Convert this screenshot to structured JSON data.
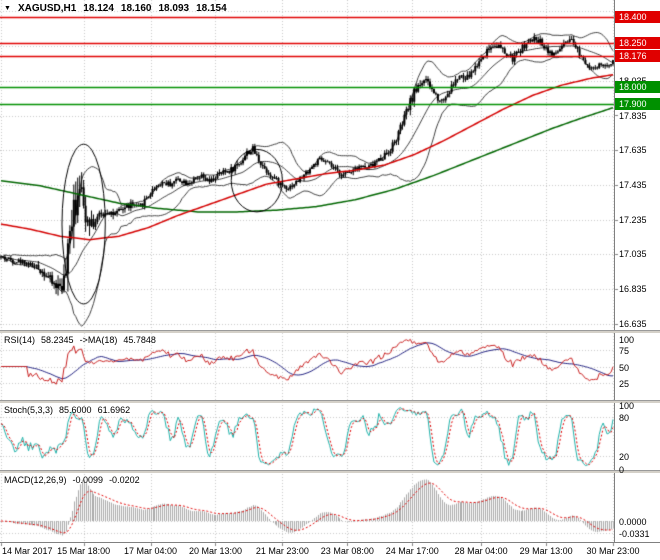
{
  "window": {
    "symbol": "XAGUSD,H1",
    "open": "18.124",
    "high": "18.160",
    "low": "18.093",
    "close": "18.154"
  },
  "colors": {
    "resistance": "#e00000",
    "support": "#009000",
    "candle": "#000000",
    "bollinger": "#404040",
    "ma_red": "#d40000",
    "ma_green": "#006600",
    "rsi_line": "#c82020",
    "rsi_ma": "#202080",
    "stoch_k": "#20b2aa",
    "stoch_d": "#e00000",
    "macd_hist": "#a8a8a8",
    "macd_signal": "#e00000",
    "grid": "#c8c8c8",
    "axis_border": "#808080"
  },
  "panels": {
    "rsi": {
      "title": "RSI(14)",
      "value": "58.2345",
      "ma_title": "->MA(18)",
      "ma_value": "45.7848",
      "axis": [
        {
          "v": 100,
          "t": "100"
        },
        {
          "v": 75,
          "t": "75"
        },
        {
          "v": 50,
          "t": "50"
        },
        {
          "v": 25,
          "t": "25"
        }
      ],
      "grid": [
        25,
        50,
        75
      ]
    },
    "stoch": {
      "title": "Stoch(5,3,3)",
      "value": "85.6000",
      "ma_value": "61.6962",
      "axis": [
        {
          "v": 100,
          "t": "100"
        },
        {
          "v": 80,
          "t": "80"
        },
        {
          "v": 20,
          "t": "20"
        },
        {
          "v": 0,
          "t": "0"
        }
      ],
      "grid": [
        20,
        80
      ]
    },
    "macd": {
      "title": "MACD(12,26,9)",
      "value": "-0.0099",
      "ma_value": "-0.0202",
      "axis": [
        {
          "v": 0,
          "t": "0.0000"
        },
        {
          "v": -0.0331,
          "t": "-0.0331"
        }
      ]
    }
  },
  "chart_data": {
    "type": "candlestick",
    "title": "XAGUSD,H1",
    "bars_total": 312,
    "seed": 42,
    "ylim": [
      16.6,
      18.5
    ],
    "ohlc_last": {
      "open": 18.124,
      "high": 18.16,
      "low": 18.093,
      "close": 18.154
    },
    "y_ticks": [
      {
        "price": 18.035,
        "t": "18.035"
      },
      {
        "price": 17.835,
        "t": "17.835"
      },
      {
        "price": 17.635,
        "t": "17.635"
      },
      {
        "price": 17.435,
        "t": "17.435"
      },
      {
        "price": 17.235,
        "t": "17.235"
      },
      {
        "price": 17.035,
        "t": "17.035"
      },
      {
        "price": 16.835,
        "t": "16.835"
      },
      {
        "price": 16.635,
        "t": "16.635"
      }
    ],
    "levels": [
      {
        "price": 18.4,
        "t": "18.400",
        "kind": "resistance"
      },
      {
        "price": 18.25,
        "t": "18.250",
        "kind": "resistance"
      },
      {
        "price": 18.176,
        "t": "18.176",
        "kind": "resistance"
      },
      {
        "price": 18.0,
        "t": "18.000",
        "kind": "support"
      },
      {
        "price": 17.9,
        "t": "17.900",
        "kind": "support"
      }
    ],
    "x_labels": [
      {
        "bar": 0,
        "t": "14 Mar 2017"
      },
      {
        "bar": 42,
        "t": "15 Mar 18:00"
      },
      {
        "bar": 76,
        "t": "17 Mar 04:00"
      },
      {
        "bar": 109,
        "t": "20 Mar 13:00"
      },
      {
        "bar": 143,
        "t": "21 Mar 23:00"
      },
      {
        "bar": 176,
        "t": "23 Mar 08:00"
      },
      {
        "bar": 209,
        "t": "24 Mar 17:00"
      },
      {
        "bar": 244,
        "t": "28 Mar 04:00"
      },
      {
        "bar": 277,
        "t": "29 Mar 13:00"
      },
      {
        "bar": 311,
        "t": "30 Mar 23:00"
      }
    ],
    "close_anchors": [
      [
        0,
        17.02
      ],
      [
        6,
        17.0
      ],
      [
        12,
        16.99
      ],
      [
        18,
        16.96
      ],
      [
        23,
        16.92
      ],
      [
        26,
        16.87
      ],
      [
        29,
        16.85
      ],
      [
        32,
        16.88
      ],
      [
        34,
        16.98
      ],
      [
        35,
        17.12
      ],
      [
        36,
        17.28
      ],
      [
        37,
        17.42
      ],
      [
        38,
        17.3
      ],
      [
        39,
        17.45
      ],
      [
        40,
        17.5
      ],
      [
        41,
        17.36
      ],
      [
        42,
        17.3
      ],
      [
        44,
        17.26
      ],
      [
        47,
        17.22
      ],
      [
        50,
        17.25
      ],
      [
        54,
        17.29
      ],
      [
        58,
        17.26
      ],
      [
        62,
        17.3
      ],
      [
        66,
        17.32
      ],
      [
        70,
        17.3
      ],
      [
        74,
        17.36
      ],
      [
        78,
        17.42
      ],
      [
        82,
        17.45
      ],
      [
        86,
        17.44
      ],
      [
        90,
        17.47
      ],
      [
        94,
        17.45
      ],
      [
        98,
        17.46
      ],
      [
        102,
        17.48
      ],
      [
        106,
        17.45
      ],
      [
        110,
        17.49
      ],
      [
        114,
        17.51
      ],
      [
        118,
        17.53
      ],
      [
        122,
        17.57
      ],
      [
        125,
        17.62
      ],
      [
        128,
        17.64
      ],
      [
        131,
        17.58
      ],
      [
        134,
        17.53
      ],
      [
        138,
        17.48
      ],
      [
        142,
        17.44
      ],
      [
        146,
        17.42
      ],
      [
        150,
        17.45
      ],
      [
        154,
        17.49
      ],
      [
        158,
        17.54
      ],
      [
        162,
        17.58
      ],
      [
        166,
        17.56
      ],
      [
        170,
        17.52
      ],
      [
        174,
        17.49
      ],
      [
        178,
        17.52
      ],
      [
        182,
        17.55
      ],
      [
        186,
        17.53
      ],
      [
        190,
        17.56
      ],
      [
        194,
        17.6
      ],
      [
        197,
        17.63
      ],
      [
        200,
        17.68
      ],
      [
        203,
        17.76
      ],
      [
        206,
        17.85
      ],
      [
        209,
        17.94
      ],
      [
        212,
        18.01
      ],
      [
        215,
        18.04
      ],
      [
        218,
        18.0
      ],
      [
        221,
        17.95
      ],
      [
        224,
        17.92
      ],
      [
        227,
        17.96
      ],
      [
        230,
        18.02
      ],
      [
        233,
        18.06
      ],
      [
        236,
        18.04
      ],
      [
        239,
        18.08
      ],
      [
        242,
        18.13
      ],
      [
        245,
        18.18
      ],
      [
        248,
        18.22
      ],
      [
        251,
        18.25
      ],
      [
        254,
        18.22
      ],
      [
        257,
        18.18
      ],
      [
        260,
        18.16
      ],
      [
        263,
        18.2
      ],
      [
        266,
        18.24
      ],
      [
        269,
        18.26
      ],
      [
        272,
        18.28
      ],
      [
        275,
        18.25
      ],
      [
        278,
        18.21
      ],
      [
        281,
        18.18
      ],
      [
        284,
        18.22
      ],
      [
        287,
        18.25
      ],
      [
        290,
        18.26
      ],
      [
        293,
        18.21
      ],
      [
        296,
        18.16
      ],
      [
        299,
        18.12
      ],
      [
        302,
        18.1
      ],
      [
        305,
        18.13
      ],
      [
        308,
        18.11
      ],
      [
        311,
        18.15
      ]
    ],
    "range_anchors": [
      [
        0,
        0.05
      ],
      [
        15,
        0.05
      ],
      [
        23,
        0.08
      ],
      [
        28,
        0.12
      ],
      [
        32,
        0.2
      ],
      [
        34,
        0.42
      ],
      [
        36,
        0.42
      ],
      [
        38,
        0.38
      ],
      [
        40,
        0.3
      ],
      [
        43,
        0.22
      ],
      [
        46,
        0.14
      ],
      [
        52,
        0.09
      ],
      [
        60,
        0.07
      ],
      [
        80,
        0.055
      ],
      [
        100,
        0.05
      ],
      [
        120,
        0.065
      ],
      [
        132,
        0.06
      ],
      [
        150,
        0.05
      ],
      [
        170,
        0.05
      ],
      [
        190,
        0.055
      ],
      [
        200,
        0.08
      ],
      [
        210,
        0.09
      ],
      [
        220,
        0.07
      ],
      [
        232,
        0.06
      ],
      [
        244,
        0.075
      ],
      [
        256,
        0.07
      ],
      [
        268,
        0.06
      ],
      [
        280,
        0.06
      ],
      [
        292,
        0.06
      ],
      [
        304,
        0.05
      ],
      [
        311,
        0.04
      ]
    ],
    "ma_red_anchors": [
      [
        0,
        17.21
      ],
      [
        15,
        17.18
      ],
      [
        30,
        17.14
      ],
      [
        45,
        17.12
      ],
      [
        60,
        17.14
      ],
      [
        75,
        17.19
      ],
      [
        90,
        17.26
      ],
      [
        105,
        17.32
      ],
      [
        120,
        17.38
      ],
      [
        135,
        17.44
      ],
      [
        150,
        17.47
      ],
      [
        165,
        17.5
      ],
      [
        180,
        17.52
      ],
      [
        195,
        17.55
      ],
      [
        210,
        17.61
      ],
      [
        225,
        17.69
      ],
      [
        240,
        17.78
      ],
      [
        255,
        17.87
      ],
      [
        270,
        17.95
      ],
      [
        285,
        18.01
      ],
      [
        300,
        18.05
      ],
      [
        311,
        18.07
      ]
    ],
    "ma_green_anchors": [
      [
        0,
        17.46
      ],
      [
        20,
        17.43
      ],
      [
        40,
        17.38
      ],
      [
        60,
        17.33
      ],
      [
        80,
        17.3
      ],
      [
        100,
        17.28
      ],
      [
        120,
        17.28
      ],
      [
        140,
        17.29
      ],
      [
        160,
        17.31
      ],
      [
        180,
        17.35
      ],
      [
        200,
        17.41
      ],
      [
        220,
        17.49
      ],
      [
        240,
        17.58
      ],
      [
        260,
        17.67
      ],
      [
        280,
        17.76
      ],
      [
        295,
        17.82
      ],
      [
        311,
        17.88
      ]
    ],
    "ellipses": [
      {
        "bar": 42,
        "bar_radius": 11,
        "price": 17.21,
        "price_radius": 0.46
      },
      {
        "bar": 130,
        "bar_radius": 13,
        "price": 17.46,
        "price_radius": 0.18
      }
    ],
    "indicators": {
      "bollinger": {
        "period": 20,
        "deviation": 2
      },
      "rsi": {
        "period": 14,
        "ma": 18
      },
      "stoch": {
        "k": 5,
        "d": 3,
        "slowing": 3
      },
      "macd": {
        "fast": 12,
        "slow": 26,
        "signal": 9
      }
    }
  }
}
